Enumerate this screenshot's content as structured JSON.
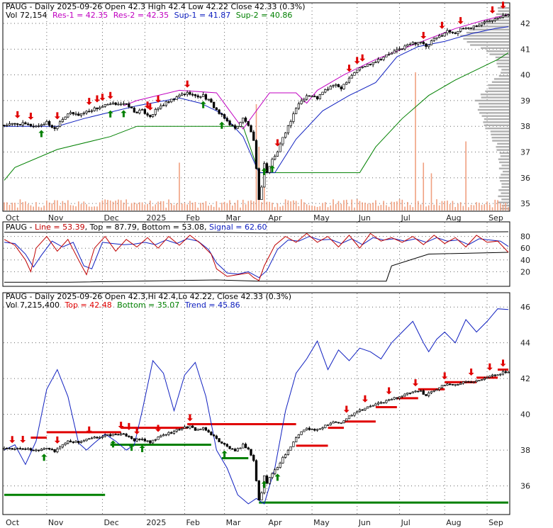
{
  "chart_data": [
    {
      "type": "candlestick",
      "symbol": "PAUG",
      "header": {
        "line1": "PAUG - Daily 2025-09-26 Open 42.3  High 42.4  Low 42.22  Close 42.33 (0.3%)",
        "vol": "Vol 72,154",
        "res1": "Res-1 = 42.35",
        "res2": "Res-2 = 42.35",
        "sup1": "Sup-1 = 41.87",
        "sup2": "Sup-2 = 40.86"
      },
      "x_tick_labels": [
        "Oct",
        "Nov",
        "Dec",
        "2025",
        "Feb",
        "Mar",
        "Apr",
        "May",
        "Jun",
        "Jul",
        "Aug",
        "Sep"
      ],
      "y_tick_labels": [
        "35",
        "36",
        "37",
        "38",
        "39",
        "40",
        "41",
        "42"
      ],
      "ylim": [
        34.7,
        42.8
      ],
      "close_path": [
        [
          0,
          38.05
        ],
        [
          6,
          38.1
        ],
        [
          12,
          38.0
        ],
        [
          16,
          38.15
        ],
        [
          19,
          37.9
        ],
        [
          21,
          38.2
        ],
        [
          24,
          38.5
        ],
        [
          28,
          38.45
        ],
        [
          33,
          38.65
        ],
        [
          38,
          38.8
        ],
        [
          43,
          38.9
        ],
        [
          47,
          38.8
        ],
        [
          49,
          38.55
        ],
        [
          52,
          38.6
        ],
        [
          55,
          38.4
        ],
        [
          58,
          38.7
        ],
        [
          60,
          38.85
        ],
        [
          64,
          39.05
        ],
        [
          67,
          39.25
        ],
        [
          70,
          39.3
        ],
        [
          72,
          39.15
        ],
        [
          75,
          39.2
        ],
        [
          78,
          38.9
        ],
        [
          81,
          38.5
        ],
        [
          84,
          38.2
        ],
        [
          87,
          37.9
        ],
        [
          90,
          38.3
        ],
        [
          92,
          38.05
        ],
        [
          94,
          37.4
        ],
        [
          95,
          36.3
        ],
        [
          96,
          35.2
        ],
        [
          97,
          35.6
        ],
        [
          98,
          36.6
        ],
        [
          99,
          36.2
        ],
        [
          101,
          36.7
        ],
        [
          103,
          37.0
        ],
        [
          105,
          37.6
        ],
        [
          108,
          38.2
        ],
        [
          111,
          38.9
        ],
        [
          114,
          39.2
        ],
        [
          118,
          39.1
        ],
        [
          121,
          39.4
        ],
        [
          124,
          39.6
        ],
        [
          127,
          39.5
        ],
        [
          130,
          39.9
        ],
        [
          133,
          40.2
        ],
        [
          137,
          40.4
        ],
        [
          141,
          40.6
        ],
        [
          145,
          40.8
        ],
        [
          149,
          41.0
        ],
        [
          153,
          41.2
        ],
        [
          157,
          41.3
        ],
        [
          159,
          41.05
        ],
        [
          161,
          41.3
        ],
        [
          164,
          41.5
        ],
        [
          167,
          41.7
        ],
        [
          170,
          41.65
        ],
        [
          173,
          41.8
        ],
        [
          176,
          41.85
        ],
        [
          179,
          41.95
        ],
        [
          182,
          42.1
        ],
        [
          185,
          42.2
        ],
        [
          188,
          42.35
        ],
        [
          190,
          42.33
        ]
      ],
      "res_line": [
        [
          45,
          38.8
        ],
        [
          50,
          39.0
        ],
        [
          66,
          39.4
        ],
        [
          80,
          39.3
        ],
        [
          90,
          37.9
        ],
        [
          100,
          39.3
        ],
        [
          110,
          39.3
        ],
        [
          114,
          38.9
        ],
        [
          118,
          39.4
        ],
        [
          128,
          40.0
        ],
        [
          140,
          40.6
        ],
        [
          150,
          41.0
        ],
        [
          160,
          41.4
        ],
        [
          170,
          41.8
        ],
        [
          180,
          42.1
        ],
        [
          190,
          42.35
        ]
      ],
      "sup1_line": [
        [
          0,
          38.0
        ],
        [
          20,
          38.0
        ],
        [
          30,
          38.3
        ],
        [
          50,
          38.8
        ],
        [
          66,
          39.1
        ],
        [
          74,
          38.9
        ],
        [
          82,
          38.5
        ],
        [
          90,
          37.6
        ],
        [
          96,
          36.2
        ],
        [
          102,
          36.2
        ],
        [
          110,
          37.5
        ],
        [
          120,
          38.6
        ],
        [
          130,
          39.2
        ],
        [
          140,
          39.7
        ],
        [
          148,
          40.7
        ],
        [
          156,
          41.1
        ],
        [
          166,
          41.3
        ],
        [
          176,
          41.6
        ],
        [
          185,
          41.8
        ],
        [
          190,
          41.87
        ]
      ],
      "sup2_line": [
        [
          0,
          35.9
        ],
        [
          4,
          36.4
        ],
        [
          20,
          37.1
        ],
        [
          40,
          37.6
        ],
        [
          50,
          38.0
        ],
        [
          90,
          38.0
        ],
        [
          96,
          36.2
        ],
        [
          134,
          36.2
        ],
        [
          140,
          37.2
        ],
        [
          150,
          38.3
        ],
        [
          160,
          39.2
        ],
        [
          170,
          39.8
        ],
        [
          178,
          40.2
        ],
        [
          186,
          40.6
        ],
        [
          190,
          40.86
        ]
      ],
      "volume_spikes": [
        [
          66,
          0.45
        ],
        [
          95,
          1.0
        ],
        [
          96,
          0.6
        ],
        [
          98,
          0.4
        ],
        [
          155,
          1.3
        ],
        [
          158,
          0.45
        ],
        [
          161,
          0.35
        ],
        [
          174,
          0.65
        ]
      ],
      "volume_profile_peaks_at": [
        "41.5",
        "39.0"
      ],
      "sell_arrows_x": [
        5,
        10,
        20,
        32,
        35,
        37,
        40,
        54,
        55,
        58,
        69,
        103,
        130,
        133,
        135,
        158,
        165,
        172,
        184,
        188
      ],
      "buy_arrows_x": [
        14,
        40,
        45,
        75,
        82,
        98,
        101
      ]
    },
    {
      "type": "line",
      "header_label": "PAUG - ",
      "series": [
        {
          "name": "Line",
          "value_label": "53.39",
          "color": "#c00000"
        },
        {
          "name": "Top",
          "value_label": "87.79",
          "color": "#000000"
        },
        {
          "name": "Bottom",
          "value_label": "53.08",
          "color": "#000000"
        },
        {
          "name": "Signal",
          "value_label": "62.60",
          "color": "#1020c0"
        }
      ],
      "y_tick_labels": [
        "20",
        "40",
        "60",
        "80"
      ],
      "ylim": [
        0,
        100
      ],
      "line_path": [
        [
          0,
          75
        ],
        [
          4,
          65
        ],
        [
          8,
          40
        ],
        [
          10,
          20
        ],
        [
          12,
          60
        ],
        [
          16,
          80
        ],
        [
          20,
          55
        ],
        [
          24,
          75
        ],
        [
          28,
          40
        ],
        [
          31,
          15
        ],
        [
          34,
          60
        ],
        [
          38,
          80
        ],
        [
          42,
          55
        ],
        [
          46,
          75
        ],
        [
          50,
          62
        ],
        [
          54,
          78
        ],
        [
          58,
          60
        ],
        [
          62,
          80
        ],
        [
          66,
          65
        ],
        [
          70,
          82
        ],
        [
          74,
          68
        ],
        [
          78,
          50
        ],
        [
          80,
          25
        ],
        [
          84,
          12
        ],
        [
          88,
          15
        ],
        [
          92,
          18
        ],
        [
          94,
          10
        ],
        [
          96,
          5
        ],
        [
          98,
          30
        ],
        [
          102,
          65
        ],
        [
          106,
          80
        ],
        [
          110,
          70
        ],
        [
          114,
          85
        ],
        [
          118,
          70
        ],
        [
          122,
          80
        ],
        [
          126,
          62
        ],
        [
          130,
          82
        ],
        [
          134,
          60
        ],
        [
          138,
          85
        ],
        [
          142,
          72
        ],
        [
          146,
          78
        ],
        [
          150,
          70
        ],
        [
          154,
          80
        ],
        [
          158,
          66
        ],
        [
          162,
          82
        ],
        [
          166,
          68
        ],
        [
          170,
          78
        ],
        [
          174,
          62
        ],
        [
          178,
          82
        ],
        [
          182,
          70
        ],
        [
          186,
          72
        ],
        [
          190,
          53
        ]
      ],
      "signal_path": [
        [
          0,
          70
        ],
        [
          4,
          68
        ],
        [
          8,
          50
        ],
        [
          11,
          28
        ],
        [
          14,
          48
        ],
        [
          18,
          72
        ],
        [
          22,
          62
        ],
        [
          26,
          70
        ],
        [
          30,
          30
        ],
        [
          33,
          25
        ],
        [
          37,
          70
        ],
        [
          41,
          68
        ],
        [
          45,
          66
        ],
        [
          49,
          67
        ],
        [
          53,
          70
        ],
        [
          57,
          66
        ],
        [
          61,
          74
        ],
        [
          65,
          68
        ],
        [
          69,
          76
        ],
        [
          73,
          72
        ],
        [
          77,
          58
        ],
        [
          80,
          35
        ],
        [
          84,
          18
        ],
        [
          88,
          16
        ],
        [
          92,
          20
        ],
        [
          96,
          10
        ],
        [
          99,
          22
        ],
        [
          103,
          58
        ],
        [
          107,
          74
        ],
        [
          111,
          72
        ],
        [
          115,
          80
        ],
        [
          119,
          74
        ],
        [
          123,
          75
        ],
        [
          127,
          68
        ],
        [
          131,
          76
        ],
        [
          135,
          66
        ],
        [
          139,
          78
        ],
        [
          143,
          74
        ],
        [
          147,
          76
        ],
        [
          151,
          72
        ],
        [
          155,
          76
        ],
        [
          159,
          70
        ],
        [
          163,
          78
        ],
        [
          167,
          72
        ],
        [
          171,
          74
        ],
        [
          175,
          66
        ],
        [
          179,
          76
        ],
        [
          183,
          74
        ],
        [
          187,
          72
        ],
        [
          190,
          63
        ]
      ],
      "top_path": [
        [
          0,
          87
        ],
        [
          80,
          87
        ],
        [
          96,
          86
        ],
        [
          120,
          86
        ],
        [
          150,
          87
        ],
        [
          190,
          88
        ]
      ],
      "bottom_path": [
        [
          0,
          2
        ],
        [
          24,
          2
        ],
        [
          80,
          6
        ],
        [
          96,
          4
        ],
        [
          144,
          4
        ],
        [
          146,
          30
        ],
        [
          160,
          50
        ],
        [
          190,
          53
        ]
      ]
    },
    {
      "type": "candlestick",
      "header": {
        "line1": "PAUG - Daily 2025-09-26 Open 42.3,Hi 42.4,Lo 42.22, Close 42.33 (0.3%)",
        "vol": "Vol 7,215,400",
        "top": "Top = 42.48",
        "bottom": "Bottom = 35.07",
        "trend": "Trend = 45.86"
      },
      "y_tick_labels": [
        "36",
        "38",
        "40",
        "42",
        "44",
        "46"
      ],
      "ylim": [
        34.4,
        46.8
      ],
      "trend_path": [
        [
          0,
          38.0
        ],
        [
          4,
          38.3
        ],
        [
          8,
          37.2
        ],
        [
          12,
          38.5
        ],
        [
          16,
          41.4
        ],
        [
          20,
          42.5
        ],
        [
          24,
          41.0
        ],
        [
          28,
          38.4
        ],
        [
          31,
          38.0
        ],
        [
          34,
          38.4
        ],
        [
          38,
          38.9
        ],
        [
          42,
          38.5
        ],
        [
          46,
          38.0
        ],
        [
          49,
          38.3
        ],
        [
          52,
          40.2
        ],
        [
          56,
          43.0
        ],
        [
          60,
          42.3
        ],
        [
          64,
          40.2
        ],
        [
          68,
          42.2
        ],
        [
          72,
          42.9
        ],
        [
          76,
          41.0
        ],
        [
          80,
          38.0
        ],
        [
          84,
          37.0
        ],
        [
          88,
          35.5
        ],
        [
          92,
          35.0
        ],
        [
          95,
          35.3
        ],
        [
          98,
          35.0
        ],
        [
          102,
          37.0
        ],
        [
          106,
          40.2
        ],
        [
          110,
          42.3
        ],
        [
          114,
          43.1
        ],
        [
          118,
          44.1
        ],
        [
          122,
          42.5
        ],
        [
          126,
          43.6
        ],
        [
          130,
          43.0
        ],
        [
          134,
          43.7
        ],
        [
          138,
          43.5
        ],
        [
          142,
          43.1
        ],
        [
          146,
          44.0
        ],
        [
          150,
          44.6
        ],
        [
          154,
          45.2
        ],
        [
          158,
          44.0
        ],
        [
          160,
          43.5
        ],
        [
          163,
          44.2
        ],
        [
          166,
          44.6
        ],
        [
          170,
          44.0
        ],
        [
          174,
          45.3
        ],
        [
          178,
          44.6
        ],
        [
          182,
          45.2
        ],
        [
          186,
          45.9
        ],
        [
          190,
          45.86
        ]
      ],
      "resistance_segments": [
        [
          10,
          16,
          38.7
        ],
        [
          16,
          44,
          39.0
        ],
        [
          44,
          69,
          39.25
        ],
        [
          69,
          110,
          39.45
        ],
        [
          110,
          122,
          38.25
        ],
        [
          122,
          128,
          39.25
        ],
        [
          128,
          140,
          39.6
        ],
        [
          140,
          148,
          40.4
        ],
        [
          148,
          156,
          40.9
        ],
        [
          156,
          166,
          41.4
        ],
        [
          166,
          178,
          41.8
        ],
        [
          178,
          186,
          42.05
        ],
        [
          186,
          190,
          42.5
        ]
      ],
      "support_segments": [
        [
          0,
          38,
          35.5
        ],
        [
          40,
          78,
          38.3
        ],
        [
          82,
          92,
          37.55
        ],
        [
          96,
          190,
          35.07
        ]
      ],
      "sell_arrows_x": [
        3,
        7,
        20,
        32,
        44,
        47,
        50,
        58,
        70,
        129,
        136,
        145,
        155,
        166,
        176,
        183,
        188
      ],
      "buy_arrows_x": [
        15,
        41,
        48,
        52,
        83,
        98,
        103
      ]
    }
  ],
  "colors": {
    "price": "#000000",
    "res": "#c000c0",
    "sup1": "#1020c0",
    "sup2": "#008000",
    "sell_arrow": "#e00000",
    "buy_arrow": "#008000",
    "volume": "#f0a080",
    "profile": "#b0b0b0",
    "grid": "#666666"
  }
}
